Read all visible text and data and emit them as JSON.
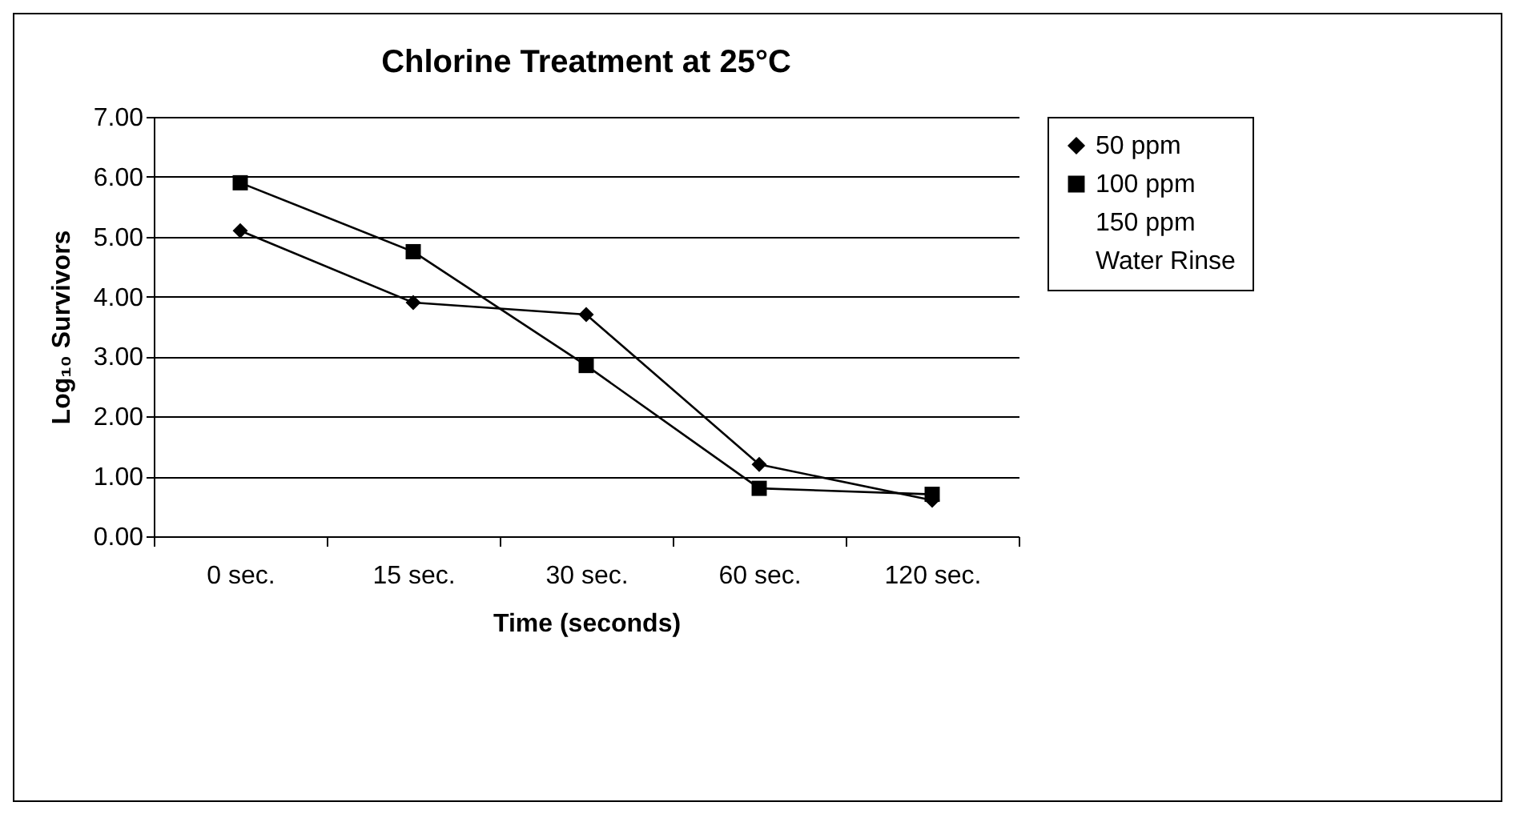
{
  "chart_data": {
    "type": "line",
    "title": "Chlorine Treatment at 25°C",
    "xlabel": "Time (seconds)",
    "ylabel": "Log₁₀ Survivors",
    "categories": [
      "0 sec.",
      "15 sec.",
      "30 sec.",
      "60 sec.",
      "120 sec."
    ],
    "series": [
      {
        "name": "50 ppm",
        "color": "#000000",
        "marker": "diamond",
        "values": [
          5.1,
          3.9,
          3.7,
          1.2,
          0.6
        ]
      },
      {
        "name": "100 ppm",
        "color": "#000000",
        "marker": "square",
        "values": [
          5.9,
          4.75,
          2.85,
          0.8,
          0.7
        ]
      },
      {
        "name": "150 ppm",
        "marker": "none",
        "values": [
          null,
          null,
          null,
          null,
          null
        ]
      },
      {
        "name": "Water Rinse",
        "marker": "none",
        "values": [
          null,
          null,
          null,
          null,
          null
        ]
      }
    ],
    "ylim": [
      0,
      7
    ],
    "yticks": [
      {
        "value": 0,
        "label": "0.00"
      },
      {
        "value": 1,
        "label": "1.00"
      },
      {
        "value": 2,
        "label": "2.00"
      },
      {
        "value": 3,
        "label": "3.00"
      },
      {
        "value": 4,
        "label": "4.00"
      },
      {
        "value": 5,
        "label": "5.00"
      },
      {
        "value": 6,
        "label": "6.00"
      },
      {
        "value": 7,
        "label": "7.00"
      }
    ],
    "grid": "y",
    "legend": "right",
    "line_style": "solid"
  }
}
